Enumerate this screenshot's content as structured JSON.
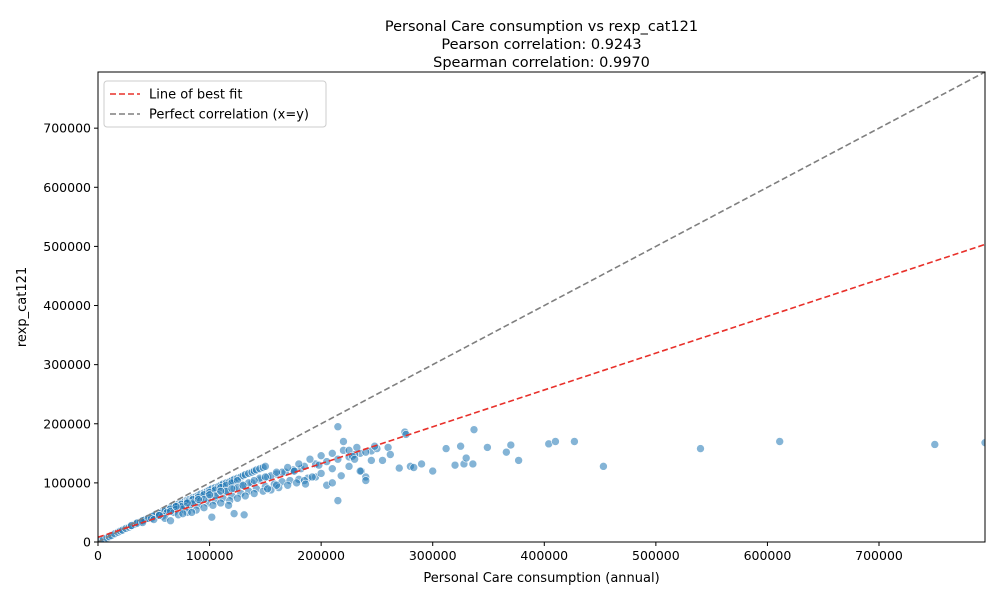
{
  "chart_data": {
    "type": "scatter",
    "title": [
      "Personal Care consumption vs rexp_cat121",
      "Pearson correlation: 0.9243",
      "Spearman correlation: 0.9970"
    ],
    "xlabel": "Personal Care consumption (annual)",
    "ylabel": "rexp_cat121",
    "xlim": [
      0,
      795000
    ],
    "ylim": [
      0,
      795000
    ],
    "x_ticks": [
      0,
      100000,
      200000,
      300000,
      400000,
      500000,
      600000,
      700000
    ],
    "y_ticks": [
      0,
      100000,
      200000,
      300000,
      400000,
      500000,
      600000,
      700000
    ],
    "grid": false,
    "legend_position": "top-left",
    "legend": [
      {
        "label": "Line of best fit",
        "style": "dashed",
        "color": "#e8302a"
      },
      {
        "label": "Perfect correlation (x=y)",
        "style": "dashed",
        "color": "#7f7f7f"
      }
    ],
    "best_fit": {
      "slope": 0.623,
      "intercept": 8000,
      "x_range": [
        0,
        795000
      ]
    },
    "identity_line": {
      "x_range": [
        0,
        795000
      ]
    },
    "point_color": "#1f77b4",
    "points": {
      "x": [
        2000,
        5000,
        8000,
        10000,
        12000,
        15000,
        18000,
        20000,
        22000,
        25000,
        28000,
        30000,
        33000,
        35000,
        38000,
        40000,
        42000,
        45000,
        48000,
        50000,
        52000,
        55000,
        58000,
        60000,
        62000,
        65000,
        68000,
        70000,
        72000,
        75000,
        78000,
        80000,
        82000,
        85000,
        88000,
        90000,
        92000,
        95000,
        98000,
        100000,
        102000,
        105000,
        108000,
        110000,
        112000,
        115000,
        118000,
        120000,
        122000,
        125000,
        128000,
        130000,
        132000,
        135000,
        138000,
        140000,
        142000,
        145000,
        148000,
        150000,
        30000,
        35000,
        40000,
        45000,
        50000,
        55000,
        60000,
        65000,
        70000,
        75000,
        80000,
        85000,
        90000,
        95000,
        100000,
        105000,
        110000,
        115000,
        120000,
        125000,
        40000,
        48000,
        55000,
        62000,
        70000,
        78000,
        85000,
        92000,
        100000,
        108000,
        115000,
        122000,
        130000,
        138000,
        145000,
        152000,
        160000,
        168000,
        175000,
        182000,
        50000,
        58000,
        68000,
        75000,
        82000,
        90000,
        98000,
        105000,
        112000,
        120000,
        128000,
        135000,
        142000,
        150000,
        158000,
        165000,
        172000,
        180000,
        188000,
        195000,
        60000,
        72000,
        80000,
        88000,
        95000,
        103000,
        110000,
        118000,
        125000,
        132000,
        140000,
        148000,
        155000,
        162000,
        170000,
        178000,
        185000,
        192000,
        200000,
        210000,
        55000,
        65000,
        75000,
        85000,
        95000,
        105000,
        115000,
        125000,
        135000,
        145000,
        155000,
        165000,
        175000,
        185000,
        195000,
        205000,
        215000,
        225000,
        235000,
        245000,
        70000,
        80000,
        90000,
        100000,
        110000,
        120000,
        130000,
        140000,
        150000,
        160000,
        170000,
        180000,
        190000,
        200000,
        210000,
        220000,
        230000,
        240000,
        250000,
        260000,
        215000,
        220000,
        225000,
        228000,
        232000,
        236000,
        240000,
        245000,
        248000,
        255000,
        262000,
        270000,
        275000,
        276000,
        280000,
        283000,
        290000,
        300000,
        312000,
        320000,
        325000,
        328000,
        330000,
        336000,
        337000,
        349000,
        366000,
        370000,
        377000,
        404000,
        410000,
        427000,
        453000,
        540000,
        611000,
        750000,
        795000,
        205000,
        210000,
        215000,
        218000,
        225000,
        230000,
        235000,
        240000,
        198000,
        186000,
        176000,
        160000,
        152000,
        131000,
        122000,
        117000,
        102000,
        84000,
        76000,
        65000
      ],
      "y": [
        2000,
        4500,
        7000,
        9000,
        11000,
        14000,
        16500,
        18500,
        20000,
        23000,
        25000,
        27000,
        30000,
        32000,
        34000,
        36000,
        38000,
        40000,
        43000,
        45000,
        47000,
        49000,
        52000,
        54000,
        56000,
        58000,
        60000,
        62000,
        64000,
        66000,
        69000,
        71000,
        72000,
        75000,
        77000,
        79000,
        81000,
        83000,
        86000,
        88000,
        90000,
        92000,
        94000,
        96000,
        98000,
        100000,
        102000,
        104000,
        106000,
        108000,
        110000,
        112000,
        114000,
        116000,
        118000,
        120000,
        122000,
        124000,
        126000,
        128000,
        28000,
        32000,
        36000,
        40000,
        44000,
        48000,
        52000,
        56000,
        60000,
        64000,
        68000,
        72000,
        76000,
        80000,
        84000,
        88000,
        92000,
        96000,
        100000,
        104000,
        33000,
        40000,
        45000,
        50000,
        55000,
        60000,
        64000,
        70000,
        75000,
        80000,
        85000,
        90000,
        95000,
        100000,
        105000,
        110000,
        115000,
        118000,
        120000,
        124000,
        38000,
        44000,
        50000,
        55000,
        58000,
        62000,
        66000,
        70000,
        74000,
        78000,
        82000,
        86000,
        90000,
        94000,
        98000,
        102000,
        104000,
        106000,
        108000,
        110000,
        40000,
        46000,
        50000,
        54000,
        58000,
        62000,
        66000,
        70000,
        74000,
        78000,
        82000,
        86000,
        88000,
        92000,
        96000,
        100000,
        104000,
        110000,
        116000,
        124000,
        45000,
        52000,
        60000,
        66000,
        72000,
        78000,
        86000,
        92000,
        100000,
        108000,
        112000,
        118000,
        122000,
        128000,
        132000,
        136000,
        140000,
        144000,
        150000,
        154000,
        60000,
        66000,
        72000,
        80000,
        86000,
        90000,
        96000,
        104000,
        110000,
        118000,
        126000,
        132000,
        140000,
        146000,
        150000,
        155000,
        148000,
        152000,
        158000,
        160000,
        195000,
        170000,
        155000,
        145000,
        160000,
        120000,
        110000,
        138000,
        162000,
        138000,
        148000,
        125000,
        186000,
        182000,
        128000,
        126000,
        132000,
        120000,
        158000,
        130000,
        162000,
        132000,
        142000,
        132000,
        190000,
        160000,
        152000,
        164000,
        138000,
        166000,
        170000,
        170000,
        128000,
        158000,
        170000,
        165000,
        168000,
        96000,
        100000,
        70000,
        112000,
        128000,
        140000,
        120000,
        104000,
        130000,
        98000,
        120000,
        96000,
        90000,
        46000,
        48000,
        62000,
        42000,
        50000,
        48000,
        36000
      ]
    }
  }
}
